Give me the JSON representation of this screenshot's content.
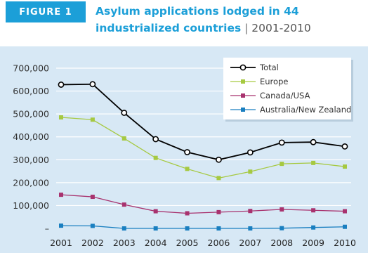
{
  "header": {
    "figure_label": "FIGURE 1",
    "title_main": "Asylum applications lodged in 44 industrialized countries",
    "title_separator": " | ",
    "title_years": "2001-2010"
  },
  "chart_data": {
    "type": "line",
    "title": "Asylum applications lodged in 44 industrialized countries",
    "subtitle": "2001-2010",
    "xlabel": "",
    "ylabel": "",
    "x": [
      "2001",
      "2002",
      "2003",
      "2004",
      "2005",
      "2006",
      "2007",
      "2008",
      "2009",
      "2010"
    ],
    "ylim": [
      0,
      700000
    ],
    "yticks": [
      0,
      100000,
      200000,
      300000,
      400000,
      500000,
      600000,
      700000
    ],
    "ytick_labels": [
      "–",
      "100,000",
      "200,000",
      "300,000",
      "400,000",
      "500,000",
      "600,000",
      "700,000"
    ],
    "grid": "horizontal",
    "legend_position": "top-right",
    "series": [
      {
        "name": "Total",
        "color": "#000000",
        "marker": "circle-open",
        "values": [
          628000,
          630000,
          505000,
          390000,
          333000,
          300000,
          332000,
          375000,
          377000,
          358000
        ]
      },
      {
        "name": "Europe",
        "color": "#a6c941",
        "marker": "square",
        "values": [
          485000,
          475000,
          393000,
          308000,
          260000,
          220000,
          248000,
          282000,
          286000,
          270000
        ]
      },
      {
        "name": "Canada/USA",
        "color": "#a8326e",
        "marker": "square",
        "values": [
          147000,
          138000,
          104000,
          75000,
          66000,
          71000,
          76000,
          83000,
          79000,
          75000
        ]
      },
      {
        "name": "Australia/New Zealand",
        "color": "#1a7fc0",
        "marker": "square",
        "values": [
          12000,
          11000,
          0,
          0,
          0,
          0,
          0,
          1000,
          4000,
          7000
        ]
      }
    ]
  }
}
